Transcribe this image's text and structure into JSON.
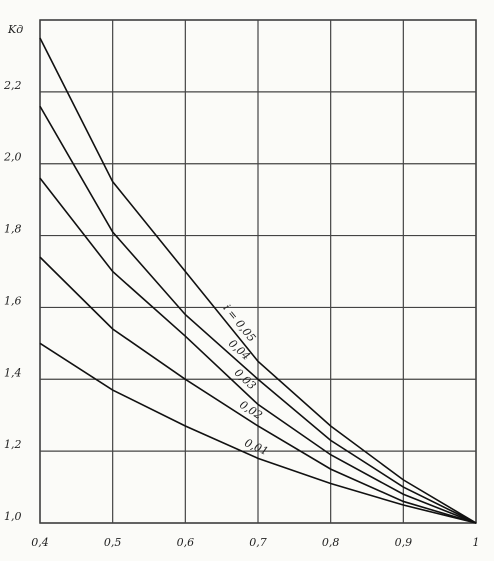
{
  "chart_data": {
    "type": "line",
    "y_label": "Kд",
    "x": [
      0.4,
      0.5,
      0.6,
      0.7,
      0.8,
      0.9,
      1.0
    ],
    "series": [
      {
        "name": "i = 0,05",
        "color": "#111111",
        "values": [
          2.35,
          1.95,
          1.7,
          1.45,
          1.27,
          1.12,
          1.0
        ]
      },
      {
        "name": "0,04",
        "color": "#111111",
        "values": [
          2.16,
          1.81,
          1.58,
          1.4,
          1.23,
          1.1,
          1.0
        ]
      },
      {
        "name": "0,03",
        "color": "#111111",
        "values": [
          1.96,
          1.7,
          1.52,
          1.33,
          1.19,
          1.08,
          1.0
        ]
      },
      {
        "name": "0,02",
        "color": "#111111",
        "values": [
          1.74,
          1.54,
          1.4,
          1.27,
          1.15,
          1.06,
          1.0
        ]
      },
      {
        "name": "0,01",
        "color": "#111111",
        "values": [
          1.5,
          1.37,
          1.27,
          1.18,
          1.11,
          1.05,
          1.0
        ]
      }
    ],
    "xlim": [
      0.4,
      1.0
    ],
    "ylim": [
      1.0,
      2.4
    ],
    "xticks": [
      {
        "value": 0.4,
        "label": "0,4"
      },
      {
        "value": 0.5,
        "label": "0,5"
      },
      {
        "value": 0.6,
        "label": "0,6"
      },
      {
        "value": 0.7,
        "label": "0,7"
      },
      {
        "value": 0.8,
        "label": "0,8"
      },
      {
        "value": 0.9,
        "label": "0,9"
      },
      1
    ],
    "yticks": [
      {
        "value": 1.0,
        "label": "1,0"
      },
      {
        "value": 1.2,
        "label": "1,2"
      },
      {
        "value": 1.4,
        "label": "1,4"
      },
      {
        "value": 1.6,
        "label": "1,6"
      },
      {
        "value": 1.8,
        "label": "1,8"
      },
      {
        "value": 2.0,
        "label": "2,0"
      },
      {
        "value": 2.2,
        "label": "2,2"
      }
    ],
    "grid": true
  }
}
